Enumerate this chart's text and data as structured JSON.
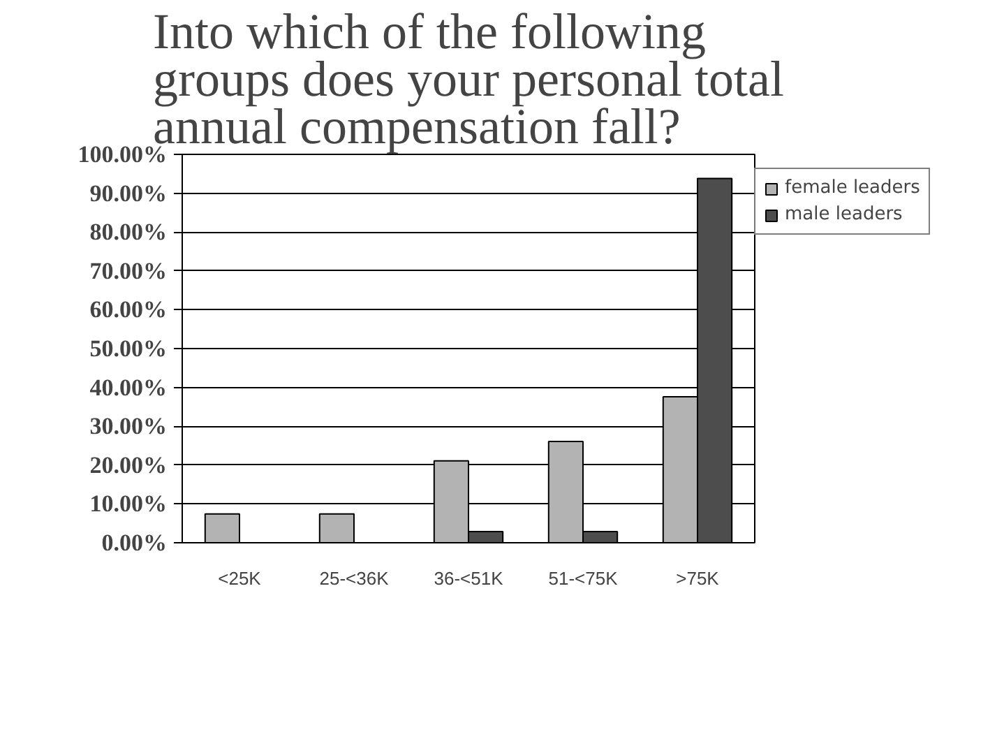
{
  "chart_data": {
    "type": "bar",
    "title": "Into which of the following groups does your personal total annual compensation fall?",
    "categories": [
      "<25K",
      "25-<36K",
      "36-<51K",
      "51-<75K",
      ">75K"
    ],
    "series": [
      {
        "name": "female leaders",
        "color": "#b3b3b3",
        "values": [
          7.4,
          7.4,
          21.1,
          26.1,
          37.6
        ]
      },
      {
        "name": "male leaders",
        "color": "#4d4d4d",
        "values": [
          null,
          null,
          2.9,
          2.9,
          93.8
        ]
      }
    ],
    "ylim": [
      0,
      100
    ],
    "yticks": [
      {
        "value": 0,
        "label": "0.00%"
      },
      {
        "value": 10,
        "label": "10.00%"
      },
      {
        "value": 20,
        "label": "20.00%"
      },
      {
        "value": 30,
        "label": "30.00%"
      },
      {
        "value": 40,
        "label": "40.00%"
      },
      {
        "value": 50,
        "label": "50.00%"
      },
      {
        "value": 60,
        "label": "60.00%"
      },
      {
        "value": 70,
        "label": "70.00%"
      },
      {
        "value": 80,
        "label": "80.00%"
      },
      {
        "value": 90,
        "label": "90.00%"
      },
      {
        "value": 100,
        "label": "100.00%"
      }
    ],
    "grid": "y",
    "legend": "right"
  }
}
